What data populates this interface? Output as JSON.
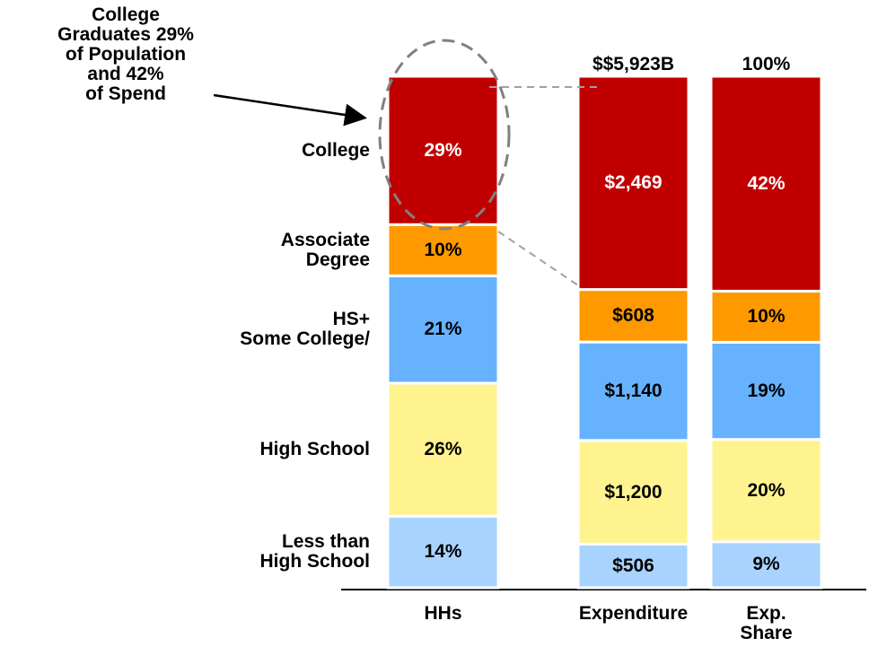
{
  "chart_data": {
    "type": "bar",
    "stacked": true,
    "annotation": "College\nGraduates 29%\nof Population\nand 42%\nof Spend",
    "categories": [
      "HHs",
      "Expenditure",
      "Exp.\nShare"
    ],
    "column_ylims": [
      [
        0,
        100
      ],
      [
        0,
        5923
      ],
      [
        0,
        100
      ]
    ],
    "top_labels": [
      null,
      "$$5,923B",
      "100%"
    ],
    "series": [
      {
        "name": "Less than\nHigh School",
        "color": "#a9d3ff",
        "values": [
          14,
          506,
          9
        ],
        "value_labels": [
          "14%",
          "$506",
          "9%"
        ]
      },
      {
        "name": "High School",
        "color": "#fff38f",
        "values": [
          26,
          1200,
          20
        ],
        "value_labels": [
          "26%",
          "$1,200",
          "20%"
        ]
      },
      {
        "name": "HS+\nSome College/",
        "color": "#66b2ff",
        "values": [
          21,
          1140,
          19
        ],
        "value_labels": [
          "21%",
          "$1,140",
          "19%"
        ]
      },
      {
        "name": "Associate\nDegree",
        "color": "#ff9900",
        "values": [
          10,
          608,
          10
        ],
        "value_labels": [
          "10%",
          "$608",
          "10%"
        ]
      },
      {
        "name": "College",
        "color": "#c00000",
        "values": [
          29,
          2469,
          42
        ],
        "value_labels": [
          "29%",
          "$2,469",
          "42%"
        ]
      }
    ]
  }
}
